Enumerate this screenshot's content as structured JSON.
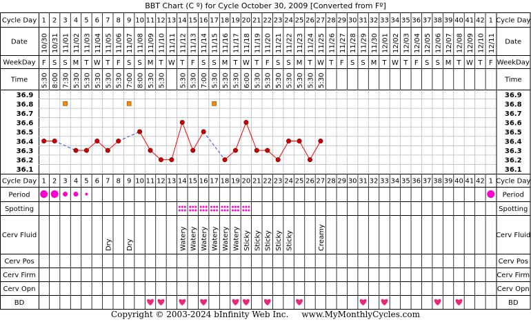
{
  "chart_data": {
    "type": "line",
    "title": "BBT Chart (C º) for Cycle October 30, 2009  [Converted from Fº]",
    "row_labels": [
      "Cycle Day",
      "Date",
      "WeekDay",
      "Time",
      "Cycle Day",
      "Period",
      "Spotting",
      "Cerv Fluid",
      "Cerv Pos",
      "Cerv Firm",
      "Cerv Opn",
      "BD"
    ],
    "cycle_days": [
      "1",
      "2",
      "3",
      "4",
      "5",
      "6",
      "7",
      "8",
      "9",
      "10",
      "11",
      "12",
      "13",
      "14",
      "15",
      "16",
      "17",
      "18",
      "19",
      "20",
      "21",
      "22",
      "23",
      "24",
      "25",
      "26",
      "27",
      "28",
      "29",
      "30",
      "31",
      "32",
      "33",
      "34",
      "35",
      "36",
      "37",
      "38",
      "39",
      "40",
      "41",
      "42",
      "1"
    ],
    "dates": [
      "10/30",
      "10/31",
      "11/01",
      "11/02",
      "11/03",
      "11/04",
      "11/05",
      "11/06",
      "11/07",
      "11/08",
      "11/09",
      "11/10",
      "11/11",
      "11/12",
      "11/13",
      "11/14",
      "11/15",
      "11/16",
      "11/17",
      "11/18",
      "11/19",
      "11/20",
      "11/21",
      "11/22",
      "11/23",
      "11/24",
      "11/25",
      "11/26",
      "11/27",
      "11/28",
      "11/29",
      "11/30",
      "12/01",
      "12/02",
      "12/03",
      "12/04",
      "12/05",
      "12/06",
      "12/07",
      "12/08",
      "12/09",
      "12/10",
      "12/11"
    ],
    "weekdays": [
      "F",
      "S",
      "S",
      "M",
      "T",
      "W",
      "T",
      "F",
      "S",
      "S",
      "M",
      "T",
      "W",
      "T",
      "F",
      "S",
      "S",
      "M",
      "T",
      "W",
      "T",
      "F",
      "S",
      "S",
      "M",
      "T",
      "W",
      "T",
      "F",
      "S",
      "S",
      "M",
      "T",
      "W",
      "T",
      "F",
      "S",
      "S",
      "M",
      "T",
      "W",
      "T",
      "F"
    ],
    "times": [
      "5:30",
      "8:00",
      "7:30",
      "5:30",
      "5:30",
      "5:30",
      "5:30",
      "5:30",
      "7:00",
      "8:00",
      "5:30",
      "5:30",
      "",
      "5:30",
      "5:30",
      "7:00",
      "5:30",
      "5:30",
      "5:30",
      "6:00",
      "5:30",
      "5:30",
      "5:30",
      "5:30",
      "5:30",
      "5:30",
      "5:30",
      "",
      "",
      "",
      "",
      "",
      "",
      "",
      "",
      "",
      "",
      "",
      "",
      "",
      "",
      "",
      ""
    ],
    "y_ticks": [
      "36.9",
      "36.8",
      "36.7",
      "36.6",
      "36.5",
      "36.4",
      "36.3",
      "36.2",
      "36.1"
    ],
    "ylim": [
      36.1,
      36.9
    ],
    "temperatures": [
      36.4,
      36.4,
      null,
      36.3,
      36.3,
      36.4,
      36.3,
      36.4,
      null,
      36.5,
      36.3,
      36.2,
      36.2,
      36.6,
      36.3,
      36.5,
      null,
      36.2,
      36.3,
      36.6,
      36.3,
      36.3,
      36.2,
      36.4,
      36.4,
      36.2,
      36.4,
      null,
      null,
      null,
      null,
      null,
      null,
      null,
      null,
      null,
      null,
      null,
      null,
      null,
      null,
      null,
      null
    ],
    "excluded_temperatures": [
      null,
      null,
      36.8,
      null,
      null,
      null,
      null,
      null,
      36.8,
      null,
      null,
      null,
      null,
      null,
      null,
      null,
      36.8,
      null,
      null,
      null,
      null,
      null,
      null,
      null,
      null,
      null,
      null,
      null,
      null,
      null,
      null,
      null,
      null,
      null,
      null,
      null,
      null,
      null,
      null,
      null,
      null,
      null,
      null
    ],
    "period": [
      3,
      3,
      2,
      2,
      1,
      0,
      0,
      0,
      0,
      0,
      0,
      0,
      0,
      0,
      0,
      0,
      0,
      0,
      0,
      0,
      0,
      0,
      0,
      0,
      0,
      0,
      0,
      0,
      0,
      0,
      0,
      0,
      0,
      0,
      0,
      0,
      0,
      0,
      0,
      0,
      0,
      0,
      3
    ],
    "spotting": [
      0,
      0,
      0,
      0,
      0,
      0,
      0,
      0,
      0,
      0,
      0,
      0,
      0,
      1,
      1,
      1,
      1,
      1,
      1,
      1,
      0,
      0,
      0,
      0,
      0,
      0,
      0,
      0,
      0,
      0,
      0,
      0,
      0,
      0,
      0,
      0,
      0,
      0,
      0,
      0,
      0,
      0,
      0
    ],
    "cerv_fluid": [
      "",
      "",
      "",
      "",
      "",
      "",
      "Dry",
      "",
      "Dry",
      "",
      "",
      "",
      "",
      "Watery",
      "Watery",
      "Watery",
      "Watery",
      "Watery",
      "Watery",
      "Sticky",
      "Sticky",
      "Sticky",
      "Sticky",
      "Sticky",
      "",
      "",
      "Creamy",
      "",
      "",
      "",
      "",
      "",
      "",
      "",
      "",
      "",
      "",
      "",
      "",
      "",
      "",
      "",
      ""
    ],
    "bd": [
      0,
      0,
      0,
      0,
      0,
      0,
      0,
      0,
      0,
      0,
      1,
      1,
      0,
      1,
      0,
      1,
      0,
      0,
      1,
      1,
      0,
      1,
      0,
      0,
      1,
      0,
      0,
      0,
      0,
      0,
      1,
      0,
      1,
      0,
      0,
      0,
      0,
      1,
      0,
      1,
      0,
      0,
      0
    ],
    "colors": {
      "line": "#ff0000",
      "point": "#cc0000",
      "excluded_point": "#ff8800",
      "dashed_link": "#3344ff",
      "period": "#ff00cc",
      "heart": "#e8287a",
      "grid": "#bbbbbb",
      "bg": "#ffffff"
    },
    "grid": true,
    "legend": "none"
  },
  "footer": "Copyright © 2003-2024 bInfinity Web Inc.     www.MyMonthlyCycles.com"
}
